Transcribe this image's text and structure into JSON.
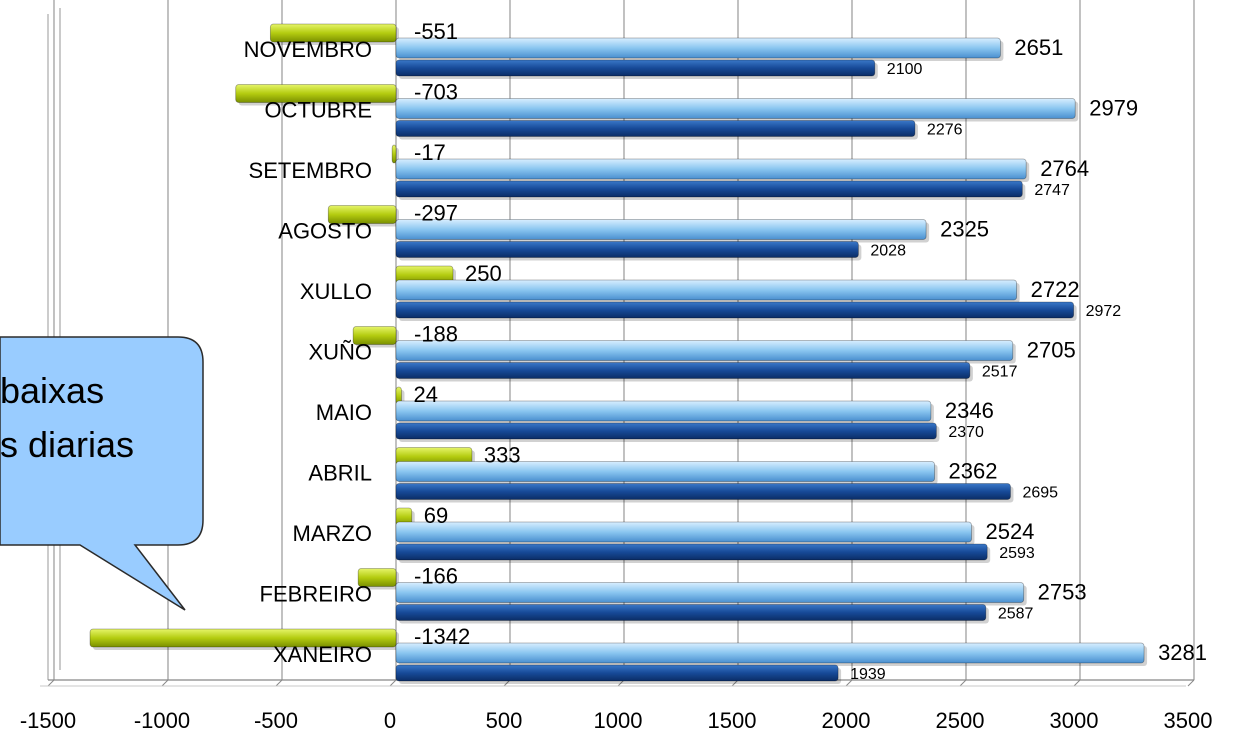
{
  "chart_data": {
    "type": "bar",
    "orientation": "horizontal",
    "categories": [
      "XANEIRO",
      "FEBREIRO",
      "MARZO",
      "ABRIL",
      "MAIO",
      "XUÑO",
      "XULLO",
      "AGOSTO",
      "SETEMBRO",
      "OCTUBRE",
      "NOVEMBRO"
    ],
    "series": [
      {
        "values": [
          -1342,
          -166,
          69,
          333,
          24,
          -188,
          250,
          -297,
          -17,
          -703,
          -551
        ],
        "color": "#a8c400"
      },
      {
        "values": [
          3281,
          2753,
          2524,
          2362,
          2346,
          2705,
          2722,
          2325,
          2764,
          2979,
          2651
        ],
        "color": "#8fc8f2"
      },
      {
        "values": [
          1939,
          2587,
          2593,
          2695,
          2370,
          2517,
          2972,
          2028,
          2747,
          2276,
          2100
        ],
        "color": "#1a4f9a"
      }
    ],
    "xlim": [
      -1500,
      3500
    ],
    "xticks": [
      -1500,
      -1000,
      -500,
      0,
      500,
      1000,
      1500,
      2000,
      2500,
      3000,
      3500
    ],
    "grid": true,
    "legend": "none"
  },
  "callout": {
    "line1": "baixas",
    "line2": "s diarias"
  }
}
